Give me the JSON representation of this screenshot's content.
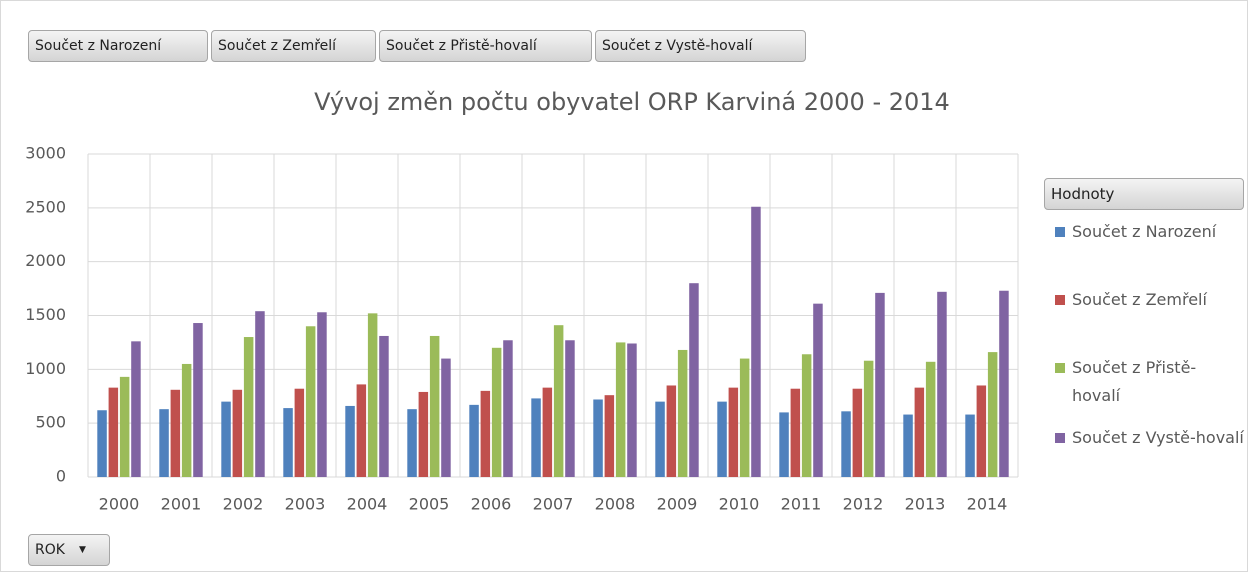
{
  "chart_data": {
    "type": "bar",
    "title": "Vývoj změn počtu obyvatel ORP Karviná 2000 - 2014",
    "legend_title": "Hodnoty",
    "axis_field": "ROK",
    "legend": "right",
    "grid": true,
    "categories": [
      "2000",
      "2001",
      "2002",
      "2003",
      "2004",
      "2005",
      "2006",
      "2007",
      "2008",
      "2009",
      "2010",
      "2011",
      "2012",
      "2013",
      "2014"
    ],
    "series": [
      {
        "name": "Součet z Narození",
        "color": "#4f81bd",
        "values": [
          620,
          630,
          700,
          640,
          660,
          630,
          670,
          730,
          720,
          700,
          700,
          600,
          610,
          580,
          580
        ]
      },
      {
        "name": "Součet z Zemřelí",
        "color": "#c0504d",
        "values": [
          830,
          810,
          810,
          820,
          860,
          790,
          800,
          830,
          760,
          850,
          830,
          820,
          820,
          830,
          850
        ]
      },
      {
        "name": "Součet z Přistě-hovalí",
        "color": "#9bbb59",
        "values": [
          930,
          1050,
          1300,
          1400,
          1520,
          1310,
          1200,
          1410,
          1250,
          1180,
          1100,
          1140,
          1080,
          1070,
          1160
        ]
      },
      {
        "name": "Součet z Vystě-hovalí",
        "color": "#8064a2",
        "values": [
          1260,
          1430,
          1540,
          1530,
          1310,
          1100,
          1270,
          1270,
          1240,
          1800,
          2510,
          1610,
          1710,
          1720,
          1730
        ]
      }
    ],
    "ylim": [
      0,
      3000
    ],
    "yticks": [
      0,
      500,
      1000,
      1500,
      2000,
      2500,
      3000
    ]
  }
}
